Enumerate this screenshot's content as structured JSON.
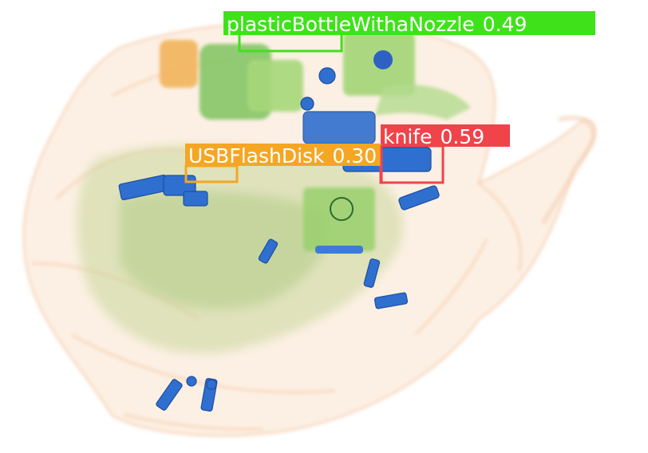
{
  "image": {
    "kind": "x-ray baggage scan with object detection overlays",
    "background": "#ffffff"
  },
  "detections": [
    {
      "label": "plasticBottleWithaNozzle",
      "score": "0.49",
      "color": "#3fe21a"
    },
    {
      "label": "knife",
      "score": "0.59",
      "color": "#f0434a"
    },
    {
      "label": "USBFlashDisk",
      "score": "0.30",
      "color": "#f5a623"
    }
  ]
}
